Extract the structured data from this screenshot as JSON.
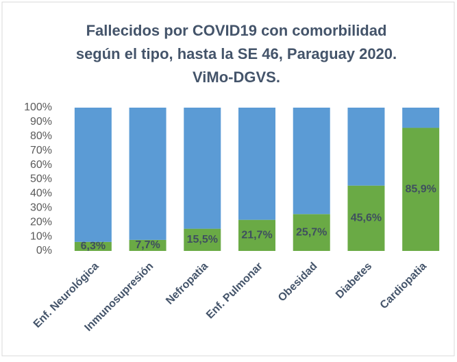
{
  "chart_data": {
    "type": "stacked_bar_100",
    "title": [
      "Fallecidos por COVID19 con comorbilidad",
      "según el tipo, hasta la SE 46, Paraguay 2020.",
      "ViMo-DGVS."
    ],
    "categories": [
      "Enf. Neurológica",
      "Inmunosupresión",
      "Nefropatia",
      "Enf. Pulmonar",
      "Obesidad",
      "Diabetes",
      "Cardiopatia"
    ],
    "series": [
      {
        "color": "#6aaa45",
        "values": [
          6.3,
          7.7,
          15.5,
          21.7,
          25.7,
          45.6,
          85.9
        ],
        "value_labels": [
          "6,3%",
          "7,7%",
          "15,5%",
          "21,7%",
          "25,7%",
          "45,6%",
          "85,9%"
        ]
      },
      {
        "color": "#5b9bd5",
        "values": [
          93.7,
          92.3,
          84.5,
          78.3,
          74.3,
          54.4,
          14.1
        ]
      }
    ],
    "ylim": [
      0,
      100
    ],
    "yticks": [
      {
        "value": 0,
        "label": "0%"
      },
      {
        "value": 10,
        "label": "10%"
      },
      {
        "value": 20,
        "label": "20%"
      },
      {
        "value": 30,
        "label": "30%"
      },
      {
        "value": 40,
        "label": "40%"
      },
      {
        "value": 50,
        "label": "50%"
      },
      {
        "value": 60,
        "label": "60%"
      },
      {
        "value": 70,
        "label": "70%"
      },
      {
        "value": 80,
        "label": "80%"
      },
      {
        "value": 90,
        "label": "90%"
      },
      {
        "value": 100,
        "label": "100%"
      }
    ]
  }
}
